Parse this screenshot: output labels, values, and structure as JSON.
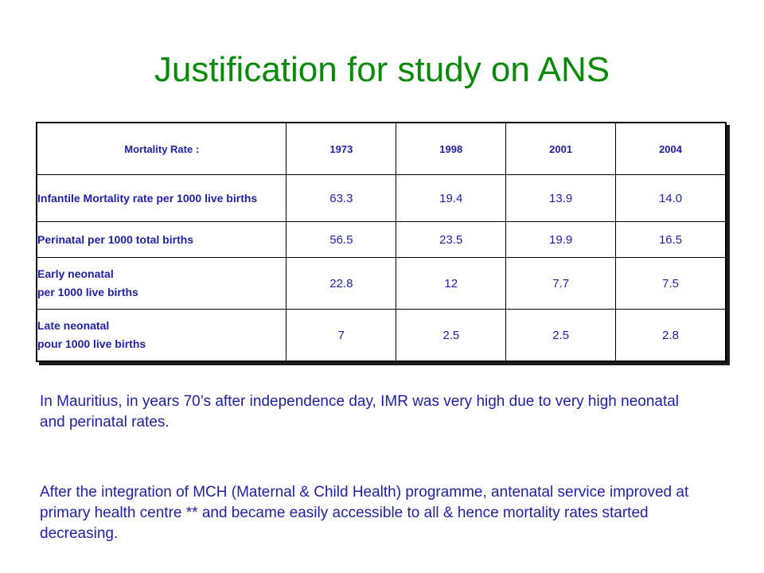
{
  "slide": {
    "title": "Justification for study on ANS"
  },
  "table": {
    "header": [
      "Mortality Rate :",
      "1973",
      "1998",
      "2001",
      "2004"
    ],
    "rows": [
      {
        "label_lines": [
          "Infantile Mortality rate per 1000 live births"
        ],
        "values": [
          "63.3",
          "19.4",
          "13.9",
          "14.0"
        ]
      },
      {
        "label_lines": [
          "Perinatal per 1000 total births"
        ],
        "values": [
          "56.5",
          "23.5",
          "19.9",
          "16.5"
        ]
      },
      {
        "label_lines": [
          "Early neonatal",
          "per 1000 live births"
        ],
        "values": [
          "22.8",
          "12",
          "7.7",
          "7.5"
        ]
      },
      {
        "label_lines": [
          "Late neonatal",
          "pour 1000 live births"
        ],
        "values": [
          "7",
          "2.5",
          "2.5",
          "2.8"
        ]
      }
    ]
  },
  "paragraphs": [
    "In Mauritius, in years 70’s after independence day, IMR was very high due to very high neonatal and perinatal rates.",
    "After the integration of MCH (Maternal & Child Health) programme, antenatal service improved at primary health centre ** and became easily accessible to all & hence mortality rates started decreasing."
  ],
  "colors": {
    "title": "#0a8a0a",
    "body_text": "#1f1fa8"
  }
}
